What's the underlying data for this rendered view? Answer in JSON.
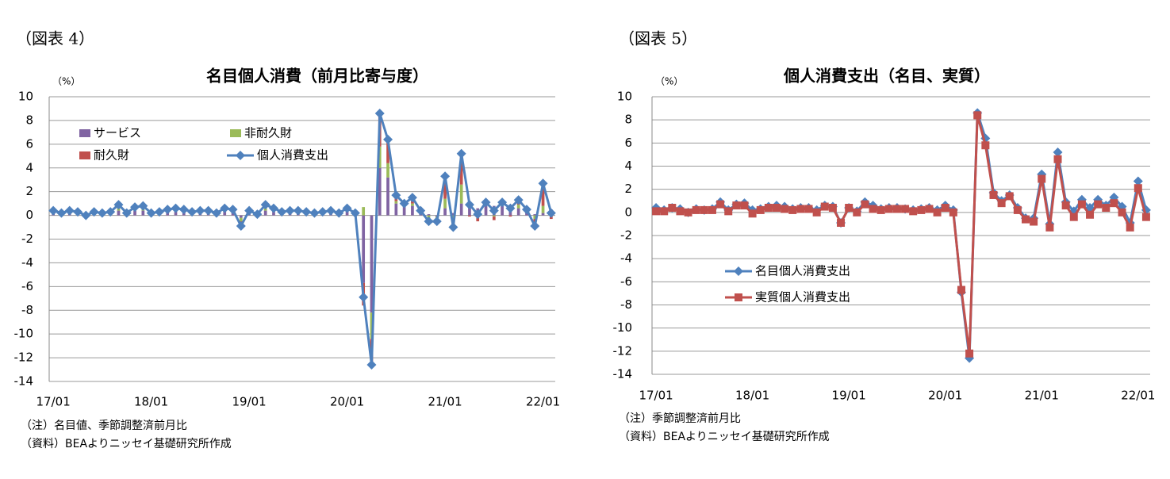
{
  "chart_data": [
    {
      "type": "bar",
      "stacked": true,
      "figure_label": "（図表 4）",
      "title": "名目個人消費（前月比寄与度）",
      "y_unit": "（%）",
      "categories": [
        "17/01",
        null,
        null,
        null,
        null,
        null,
        null,
        null,
        null,
        null,
        null,
        null,
        "18/01",
        null,
        null,
        null,
        null,
        null,
        null,
        null,
        null,
        null,
        null,
        null,
        "19/01",
        null,
        null,
        null,
        null,
        null,
        null,
        null,
        null,
        null,
        null,
        null,
        "20/01",
        null,
        null,
        null,
        null,
        null,
        null,
        null,
        null,
        null,
        null,
        null,
        "21/01",
        null,
        null,
        null,
        null,
        null,
        null,
        null,
        null,
        null,
        null,
        null,
        "22/01",
        null
      ],
      "series": [
        {
          "name": "サービス",
          "color": "#8064a2",
          "values": [
            0.3,
            0.2,
            0.3,
            0.2,
            0.1,
            0.2,
            0.2,
            0.2,
            0.4,
            0.2,
            0.4,
            0.4,
            0.2,
            0.2,
            0.3,
            0.3,
            0.3,
            0.2,
            0.3,
            0.3,
            0.2,
            0.3,
            0.3,
            -0.2,
            0.1,
            0.2,
            0.4,
            0.3,
            0.2,
            0.3,
            0.3,
            0.2,
            0.2,
            0.2,
            0.3,
            0.2,
            0.4,
            0.1,
            -5.7,
            -8.2,
            4.0,
            3.2,
            1.0,
            0.8,
            0.8,
            0.4,
            0.1,
            -0.1,
            0.6,
            0.2,
            1.0,
            0.9,
            0.6,
            0.9,
            0.8,
            0.8,
            0.5,
            0.6,
            0.4,
            0.1,
            0.2,
            0.5
          ]
        },
        {
          "name": "非耐久財",
          "color": "#9bbb59",
          "values": [
            0.1,
            0.0,
            0.1,
            0.0,
            -0.1,
            0.0,
            0.0,
            0.1,
            0.2,
            0.0,
            0.1,
            0.2,
            0.0,
            0.0,
            0.0,
            0.1,
            0.1,
            0.0,
            0.1,
            0.1,
            0.0,
            0.1,
            0.1,
            -0.3,
            0.1,
            -0.1,
            0.2,
            0.1,
            0.0,
            0.0,
            0.1,
            0.0,
            0.0,
            0.1,
            0.1,
            0.0,
            0.1,
            0.1,
            0.7,
            -2.2,
            1.8,
            1.2,
            0.2,
            0.0,
            0.2,
            0.0,
            -0.3,
            -0.2,
            0.8,
            -0.5,
            1.6,
            0.1,
            -0.2,
            0.1,
            -0.1,
            0.3,
            0.2,
            0.3,
            0.0,
            -0.3,
            0.6,
            0.0
          ]
        },
        {
          "name": "耐久財",
          "color": "#c0504d",
          "values": [
            0.0,
            0.0,
            0.0,
            0.1,
            0.0,
            0.1,
            0.0,
            0.0,
            0.3,
            0.0,
            0.2,
            0.2,
            0.0,
            0.1,
            0.2,
            0.2,
            0.1,
            0.1,
            0.0,
            0.0,
            0.0,
            0.2,
            0.1,
            -0.4,
            0.2,
            0.0,
            0.3,
            0.2,
            0.1,
            0.1,
            0.0,
            0.1,
            0.0,
            0.0,
            0.0,
            0.0,
            0.1,
            0.0,
            -1.9,
            -2.2,
            2.8,
            2.0,
            0.5,
            0.2,
            0.5,
            0.0,
            -0.3,
            -0.2,
            1.9,
            -0.7,
            2.6,
            -0.1,
            -0.3,
            0.1,
            -0.3,
            0.0,
            -0.1,
            0.4,
            0.1,
            -0.7,
            1.9,
            -0.3
          ]
        },
        {
          "name": "個人消費支出",
          "type": "line",
          "marker": "diamond",
          "color": "#4f81bd",
          "values": [
            0.4,
            0.2,
            0.4,
            0.3,
            0.0,
            0.3,
            0.2,
            0.3,
            0.9,
            0.2,
            0.7,
            0.8,
            0.2,
            0.3,
            0.5,
            0.6,
            0.5,
            0.3,
            0.4,
            0.4,
            0.2,
            0.6,
            0.5,
            -0.9,
            0.4,
            0.1,
            0.9,
            0.6,
            0.3,
            0.4,
            0.4,
            0.3,
            0.2,
            0.3,
            0.4,
            0.2,
            0.6,
            0.2,
            -6.9,
            -12.6,
            8.6,
            6.4,
            1.7,
            1.0,
            1.5,
            0.4,
            -0.5,
            -0.5,
            3.3,
            -1.0,
            5.2,
            0.9,
            0.1,
            1.1,
            0.4,
            1.1,
            0.6,
            1.3,
            0.5,
            -0.9,
            2.7,
            0.2
          ]
        }
      ],
      "ylim": [
        -14,
        10
      ],
      "yticks": [
        -14,
        -12,
        -10,
        -8,
        -6,
        -4,
        -2,
        0,
        2,
        4,
        6,
        8,
        10
      ],
      "grid": true,
      "notes": [
        "（注）名目値、季節調整済前月比",
        "（資料）BEAよりニッセイ基礎研究所作成"
      ]
    },
    {
      "type": "line",
      "figure_label": "（図表 5）",
      "title": "個人消費支出（名目、実質）",
      "y_unit": "（%）",
      "categories": [
        "17/01",
        null,
        null,
        null,
        null,
        null,
        null,
        null,
        null,
        null,
        null,
        null,
        "18/01",
        null,
        null,
        null,
        null,
        null,
        null,
        null,
        null,
        null,
        null,
        null,
        "19/01",
        null,
        null,
        null,
        null,
        null,
        null,
        null,
        null,
        null,
        null,
        null,
        "20/01",
        null,
        null,
        null,
        null,
        null,
        null,
        null,
        null,
        null,
        null,
        null,
        "21/01",
        null,
        null,
        null,
        null,
        null,
        null,
        null,
        null,
        null,
        null,
        null,
        "22/01",
        null
      ],
      "series": [
        {
          "name": "名目個人消費支出",
          "marker": "diamond",
          "color": "#4f81bd",
          "values": [
            0.4,
            0.2,
            0.4,
            0.3,
            0.0,
            0.3,
            0.2,
            0.3,
            0.9,
            0.2,
            0.7,
            0.8,
            0.2,
            0.3,
            0.5,
            0.6,
            0.5,
            0.3,
            0.4,
            0.4,
            0.2,
            0.6,
            0.5,
            -0.9,
            0.4,
            0.1,
            0.9,
            0.6,
            0.3,
            0.4,
            0.4,
            0.3,
            0.2,
            0.3,
            0.4,
            0.2,
            0.6,
            0.2,
            -6.9,
            -12.6,
            8.6,
            6.4,
            1.7,
            1.0,
            1.5,
            0.4,
            -0.5,
            -0.5,
            3.3,
            -1.0,
            5.2,
            0.9,
            0.1,
            1.1,
            0.4,
            1.1,
            0.6,
            1.3,
            0.5,
            -0.9,
            2.7,
            0.2
          ]
        },
        {
          "name": "実質個人消費支出",
          "marker": "square",
          "color": "#c0504d",
          "values": [
            0.1,
            0.1,
            0.4,
            0.1,
            0.0,
            0.2,
            0.2,
            0.2,
            0.7,
            0.1,
            0.6,
            0.6,
            -0.1,
            0.2,
            0.4,
            0.4,
            0.3,
            0.2,
            0.3,
            0.3,
            0.0,
            0.5,
            0.4,
            -0.9,
            0.4,
            0.0,
            0.7,
            0.3,
            0.2,
            0.3,
            0.3,
            0.3,
            0.1,
            0.2,
            0.3,
            0.0,
            0.4,
            0.0,
            -6.7,
            -12.2,
            8.4,
            5.8,
            1.5,
            0.8,
            1.4,
            0.2,
            -0.6,
            -0.8,
            2.9,
            -1.3,
            4.6,
            0.6,
            -0.4,
            0.7,
            -0.2,
            0.7,
            0.4,
            0.8,
            0.0,
            -1.3,
            2.1,
            -0.4
          ]
        }
      ],
      "ylim": [
        -14,
        10
      ],
      "yticks": [
        -14,
        -12,
        -10,
        -8,
        -6,
        -4,
        -2,
        0,
        2,
        4,
        6,
        8,
        10
      ],
      "grid": true,
      "notes": [
        "（注）季節調整済前月比",
        "（資料）BEAよりニッセイ基礎研究所作成"
      ]
    }
  ]
}
